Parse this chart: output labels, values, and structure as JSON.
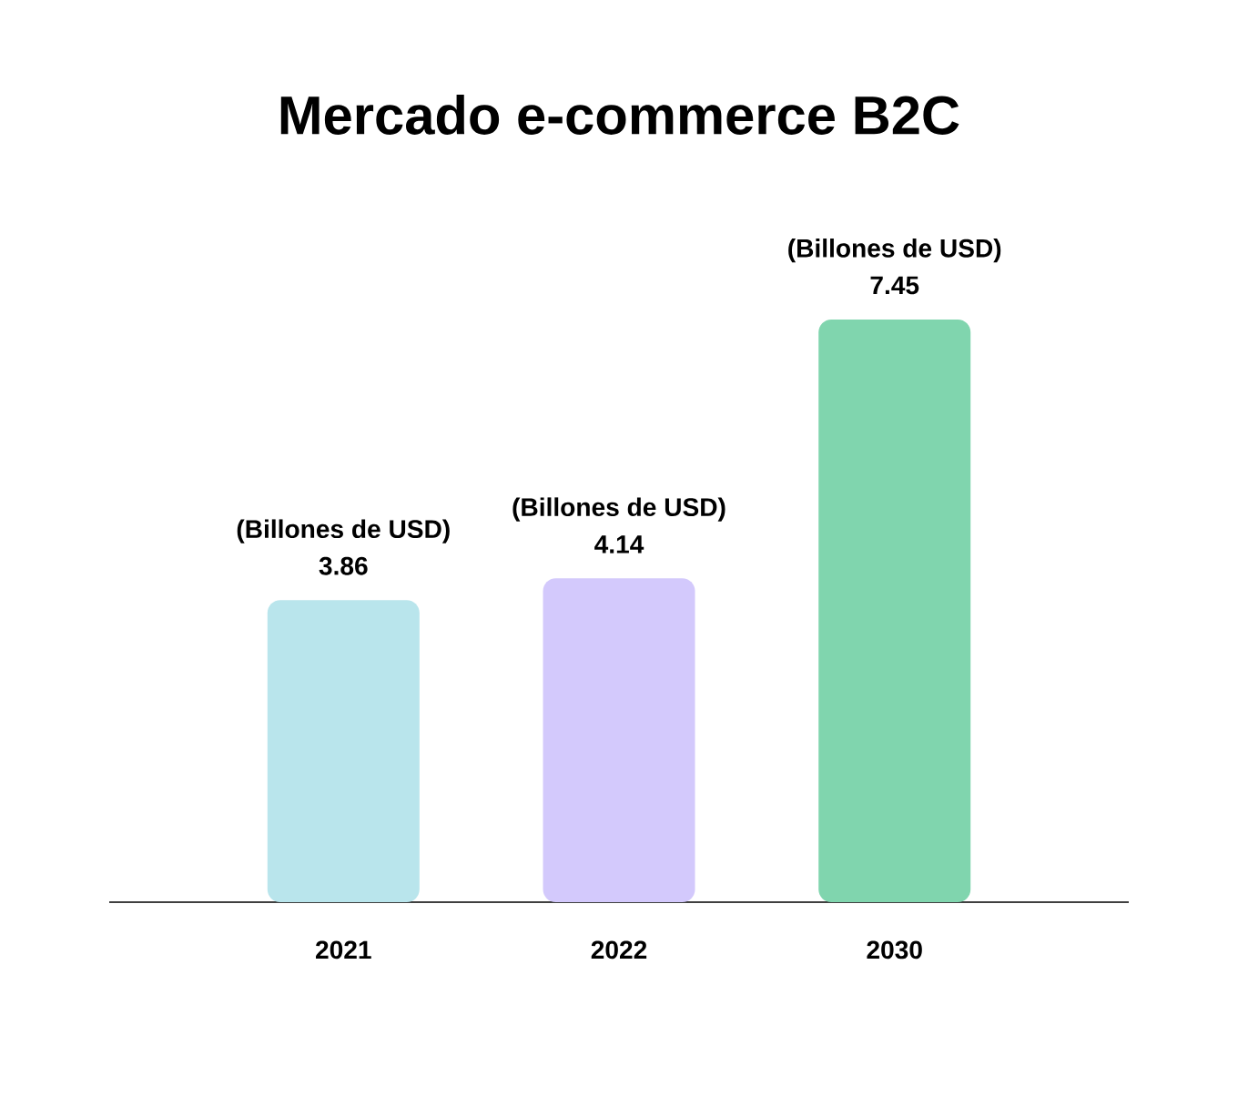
{
  "chart_data": {
    "type": "bar",
    "title": "Mercado e-commerce B2C",
    "categories": [
      "2021",
      "2022",
      "2030"
    ],
    "values": [
      3.86,
      4.14,
      7.45
    ],
    "colors": [
      "#b9e5ec",
      "#d3c9fc",
      "#80d5ae"
    ],
    "data_labels": true,
    "annotations": [
      {
        "text": "(Billones de USD)",
        "x": "2021",
        "y": 3.86
      },
      {
        "text": "(Billones de USD)",
        "x": "2022",
        "y": 4.14
      },
      {
        "text": "(Billones de USD)",
        "x": "2030",
        "y": 7.45
      }
    ]
  }
}
